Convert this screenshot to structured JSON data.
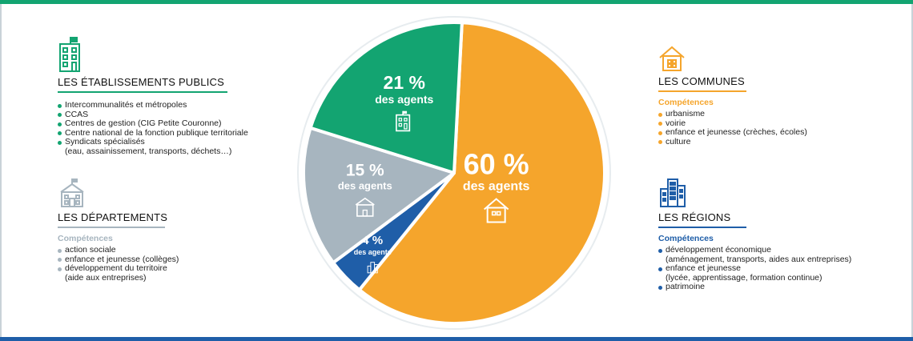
{
  "colors": {
    "green": "#13a471",
    "orange": "#f5a52c",
    "grey": "#a7b5bf",
    "blue": "#1f5ea8",
    "text": "#222222"
  },
  "etablissements": {
    "title": "LES ÉTABLISSEMENTS PUBLICS",
    "icon": "office-building-icon",
    "items": [
      "Intercommunalités et métropoles",
      "CCAS",
      "Centres de gestion (CIG Petite Couronne)",
      "Centre national de la fonction publique territoriale",
      "Syndicats spécialisés",
      "(eau, assainissement, transports, déchets…)"
    ]
  },
  "departements": {
    "title": "LES DÉPARTEMENTS",
    "icon": "departement-building-icon",
    "subtitle": "Compétences",
    "items": [
      "action sociale",
      "enfance et jeunesse (collèges)",
      "développement du territoire",
      "(aide aux entreprises)"
    ]
  },
  "communes": {
    "title": "LES COMMUNES",
    "icon": "house-icon",
    "subtitle": "Compétences",
    "items": [
      "urbanisme",
      "voirie",
      "enfance et jeunesse (crèches, écoles)",
      "culture"
    ]
  },
  "regions": {
    "title": "LES RÉGIONS",
    "icon": "tower-building-icon",
    "subtitle": "Compétences",
    "items": [
      "développement économique",
      "(aménagement, transports, aides aux entreprises)",
      "enfance et jeunesse",
      "(lycée, apprentissage, formation continue)",
      "patrimoine"
    ]
  },
  "chart_data": {
    "type": "pie",
    "slices": [
      {
        "label": "Communes",
        "value": 60,
        "value_label": "60 %",
        "sub_label": "des agents",
        "color": "#f5a52c",
        "icon": "house-icon"
      },
      {
        "label": "Régions",
        "value": 4,
        "value_label": "4 %",
        "sub_label": "des agents",
        "color": "#1f5ea8",
        "icon": "tower-building-icon"
      },
      {
        "label": "Départements",
        "value": 15,
        "value_label": "15 %",
        "sub_label": "des agents",
        "color": "#a7b5bf",
        "icon": "departement-building-icon"
      },
      {
        "label": "Établissements publics",
        "value": 21,
        "value_label": "21 %",
        "sub_label": "des agents",
        "color": "#13a471",
        "icon": "office-building-icon"
      }
    ]
  }
}
